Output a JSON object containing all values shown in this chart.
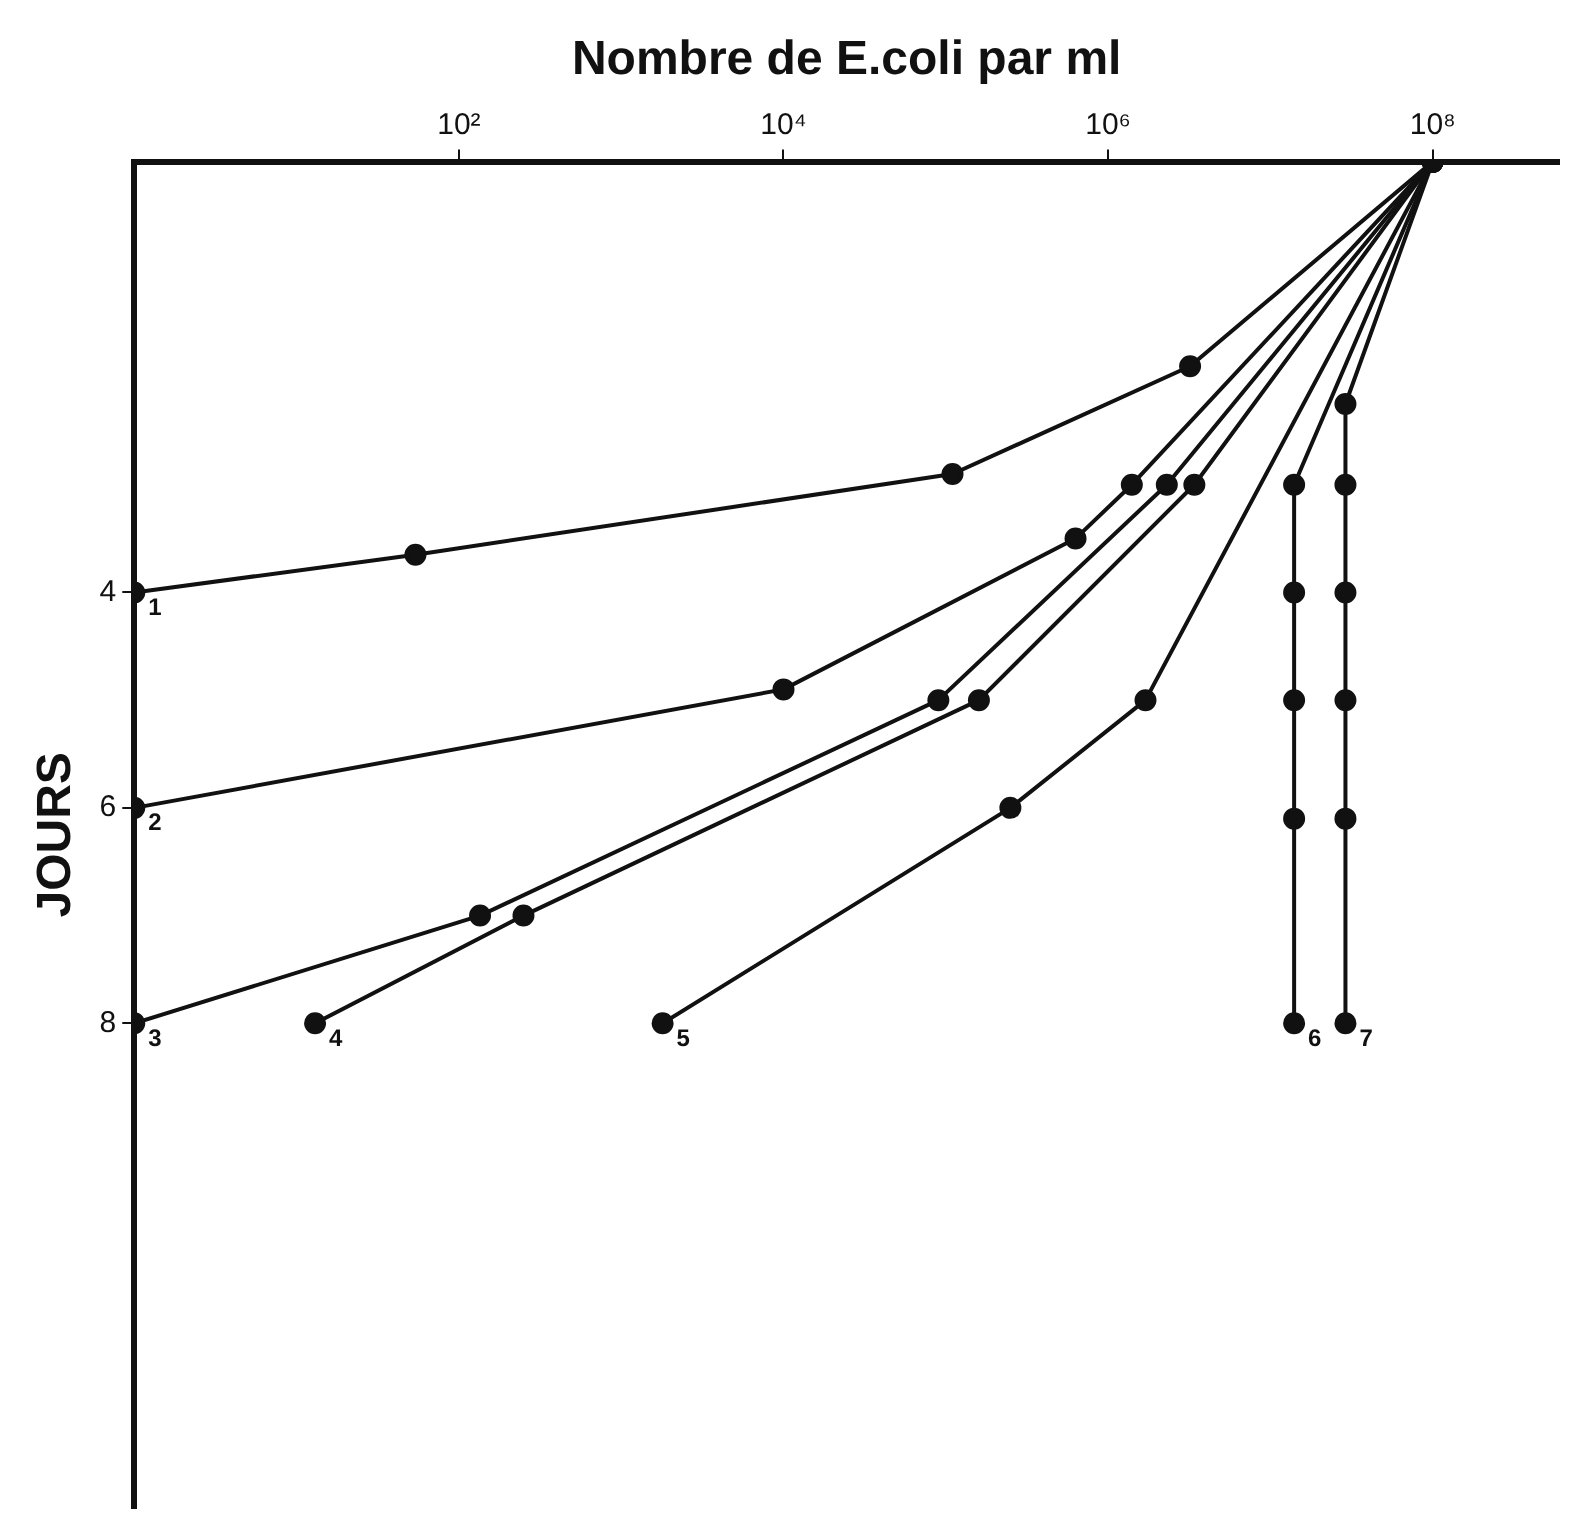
{
  "chart_data": {
    "type": "line",
    "xlabel": "Nombre de E.coli par ml",
    "ylabel": "JOURS",
    "log": "x",
    "xlim": [
      1,
      600000000
    ],
    "xticks": [
      {
        "value": 100,
        "label": "10²"
      },
      {
        "value": 10000,
        "label": "10⁴"
      },
      {
        "value": 1000000,
        "label": "10⁶"
      },
      {
        "value": 100000000,
        "label": "10⁸"
      }
    ],
    "ylim": [
      12.5,
      0
    ],
    "yticks": [
      4,
      6,
      8
    ],
    "grid": false,
    "legend": false,
    "marker": "circle",
    "line_style": "solid",
    "series": [
      {
        "name": "1",
        "color": "#111111",
        "x": [
          100000000,
          3200000,
          110000,
          54,
          1
        ],
        "values": [
          0,
          1.9,
          2.9,
          3.65,
          4
        ]
      },
      {
        "name": "2",
        "color": "#111111",
        "x": [
          100000000,
          1400000,
          630000,
          10000,
          1
        ],
        "values": [
          0,
          3,
          3.5,
          4.9,
          6
        ]
      },
      {
        "name": "3",
        "color": "#111111",
        "x": [
          100000000,
          2300000,
          90000,
          135,
          1
        ],
        "values": [
          0,
          3,
          5,
          7,
          8
        ]
      },
      {
        "name": "4",
        "color": "#111111",
        "x": [
          100000000,
          3400000,
          160000,
          250,
          13
        ],
        "values": [
          0,
          3,
          5,
          7,
          8
        ]
      },
      {
        "name": "5",
        "color": "#111111",
        "x": [
          100000000,
          1700000,
          250000,
          1800
        ],
        "values": [
          0,
          5,
          6,
          8
        ]
      },
      {
        "name": "6",
        "color": "#111111",
        "x": [
          100000000,
          14000000,
          14000000,
          14000000,
          14000000,
          14000000
        ],
        "values": [
          0,
          3,
          4,
          5,
          6.1,
          8
        ]
      },
      {
        "name": "7",
        "color": "#111111",
        "x": [
          100000000,
          29000000,
          29000000,
          29000000,
          29000000,
          29000000,
          29000000
        ],
        "values": [
          0,
          2.25,
          3,
          4,
          5,
          6.1,
          8
        ]
      }
    ]
  }
}
